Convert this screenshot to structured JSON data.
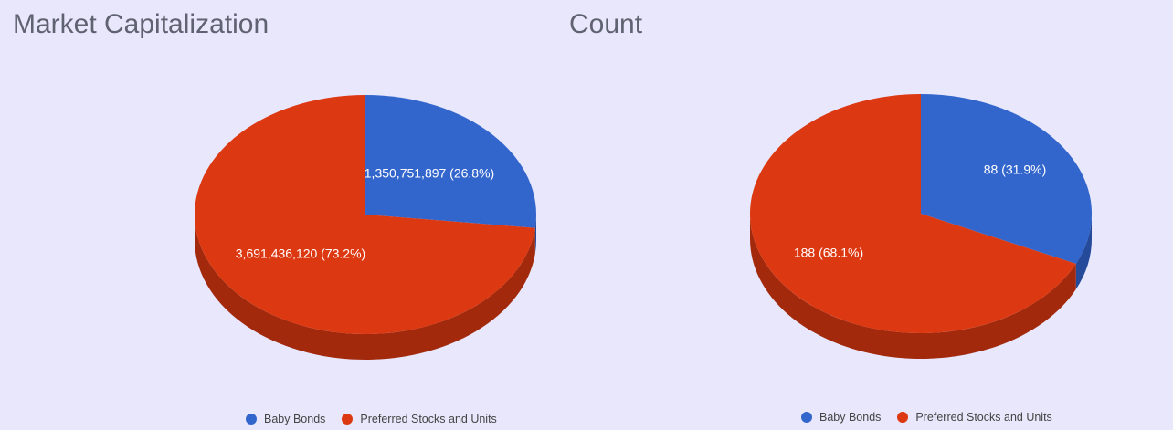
{
  "chart_data": [
    {
      "type": "pie",
      "title": "Market Capitalization",
      "categories": [
        "Baby Bonds",
        "Preferred Stocks and Units"
      ],
      "values": [
        1350751897,
        3691436120
      ],
      "labels": [
        "1,350,751,897 (26.8%)",
        "3,691,436,120 (73.2%)"
      ],
      "percentages": [
        26.8,
        73.2
      ],
      "legend_position": "bottom",
      "style": "3d"
    },
    {
      "type": "pie",
      "title": "Count",
      "categories": [
        "Baby Bonds",
        "Preferred Stocks and Units"
      ],
      "values": [
        88,
        188
      ],
      "labels": [
        "88 (31.9%)",
        "188 (68.1%)"
      ],
      "percentages": [
        31.9,
        68.1
      ],
      "legend_position": "bottom",
      "style": "3d"
    }
  ],
  "colors": {
    "baby_bonds": "#3366cc",
    "baby_bonds_side": "#244a99",
    "preferred": "#dc3912",
    "preferred_side": "#a2290c",
    "label_text": "#ffffff"
  }
}
